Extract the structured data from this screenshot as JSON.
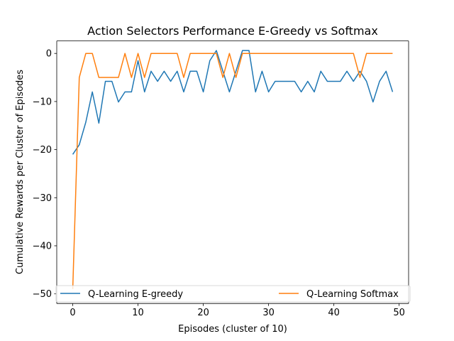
{
  "chart_data": {
    "type": "line",
    "title": "Action Selectors Performance E-Greedy vs Softmax",
    "xlabel": "Episodes (cluster of 10)",
    "ylabel": "Cumulative Rewards per Cluster of Episodes",
    "xlim": [
      -2.45,
      51.45
    ],
    "ylim": [
      -52,
      2.6
    ],
    "xticks": [
      0,
      10,
      20,
      30,
      40,
      50
    ],
    "yticks": [
      0,
      -10,
      -20,
      -30,
      -40,
      -50
    ],
    "grid": false,
    "legend_position": "lower center (horizontal)",
    "x": [
      0,
      1,
      2,
      3,
      4,
      5,
      6,
      7,
      8,
      9,
      10,
      11,
      12,
      13,
      14,
      15,
      16,
      17,
      18,
      19,
      20,
      21,
      22,
      23,
      24,
      25,
      26,
      27,
      28,
      29,
      30,
      31,
      32,
      33,
      34,
      35,
      36,
      37,
      38,
      39,
      40,
      41,
      42,
      43,
      44,
      45,
      46,
      47,
      48,
      49
    ],
    "series": [
      {
        "name": "Q-Learning E-greedy",
        "color": "#1f77b4",
        "values": [
          -21,
          -19,
          -14.3,
          -8,
          -14.5,
          -5.8,
          -5.8,
          -10.1,
          -8,
          -8,
          -1.5,
          -8,
          -3.7,
          -5.8,
          -3.7,
          -5.8,
          -3.7,
          -8,
          -3.7,
          -3.7,
          -8,
          -1.5,
          0.6,
          -3.7,
          -8,
          -3.7,
          0.6,
          0.6,
          -8,
          -3.7,
          -8,
          -5.8,
          -5.8,
          -5.8,
          -5.8,
          -8,
          -5.8,
          -8,
          -3.7,
          -5.8,
          -5.8,
          -5.8,
          -3.7,
          -5.8,
          -3.7,
          -5.8,
          -10.1,
          -5.8,
          -3.7,
          -8
        ]
      },
      {
        "name": "Q-Learning Softmax",
        "color": "#ff7f0e",
        "values": [
          -49,
          -5,
          0,
          0,
          -5,
          -5,
          -5,
          -5,
          0,
          -5,
          0,
          -5,
          0,
          0,
          0,
          0,
          0,
          -5,
          0,
          0,
          0,
          0,
          0,
          -5,
          0,
          -5,
          0,
          0,
          0,
          0,
          0,
          0,
          0,
          0,
          0,
          0,
          0,
          0,
          0,
          0,
          0,
          0,
          0,
          0,
          -5,
          0,
          0,
          0,
          0,
          0
        ]
      }
    ]
  }
}
